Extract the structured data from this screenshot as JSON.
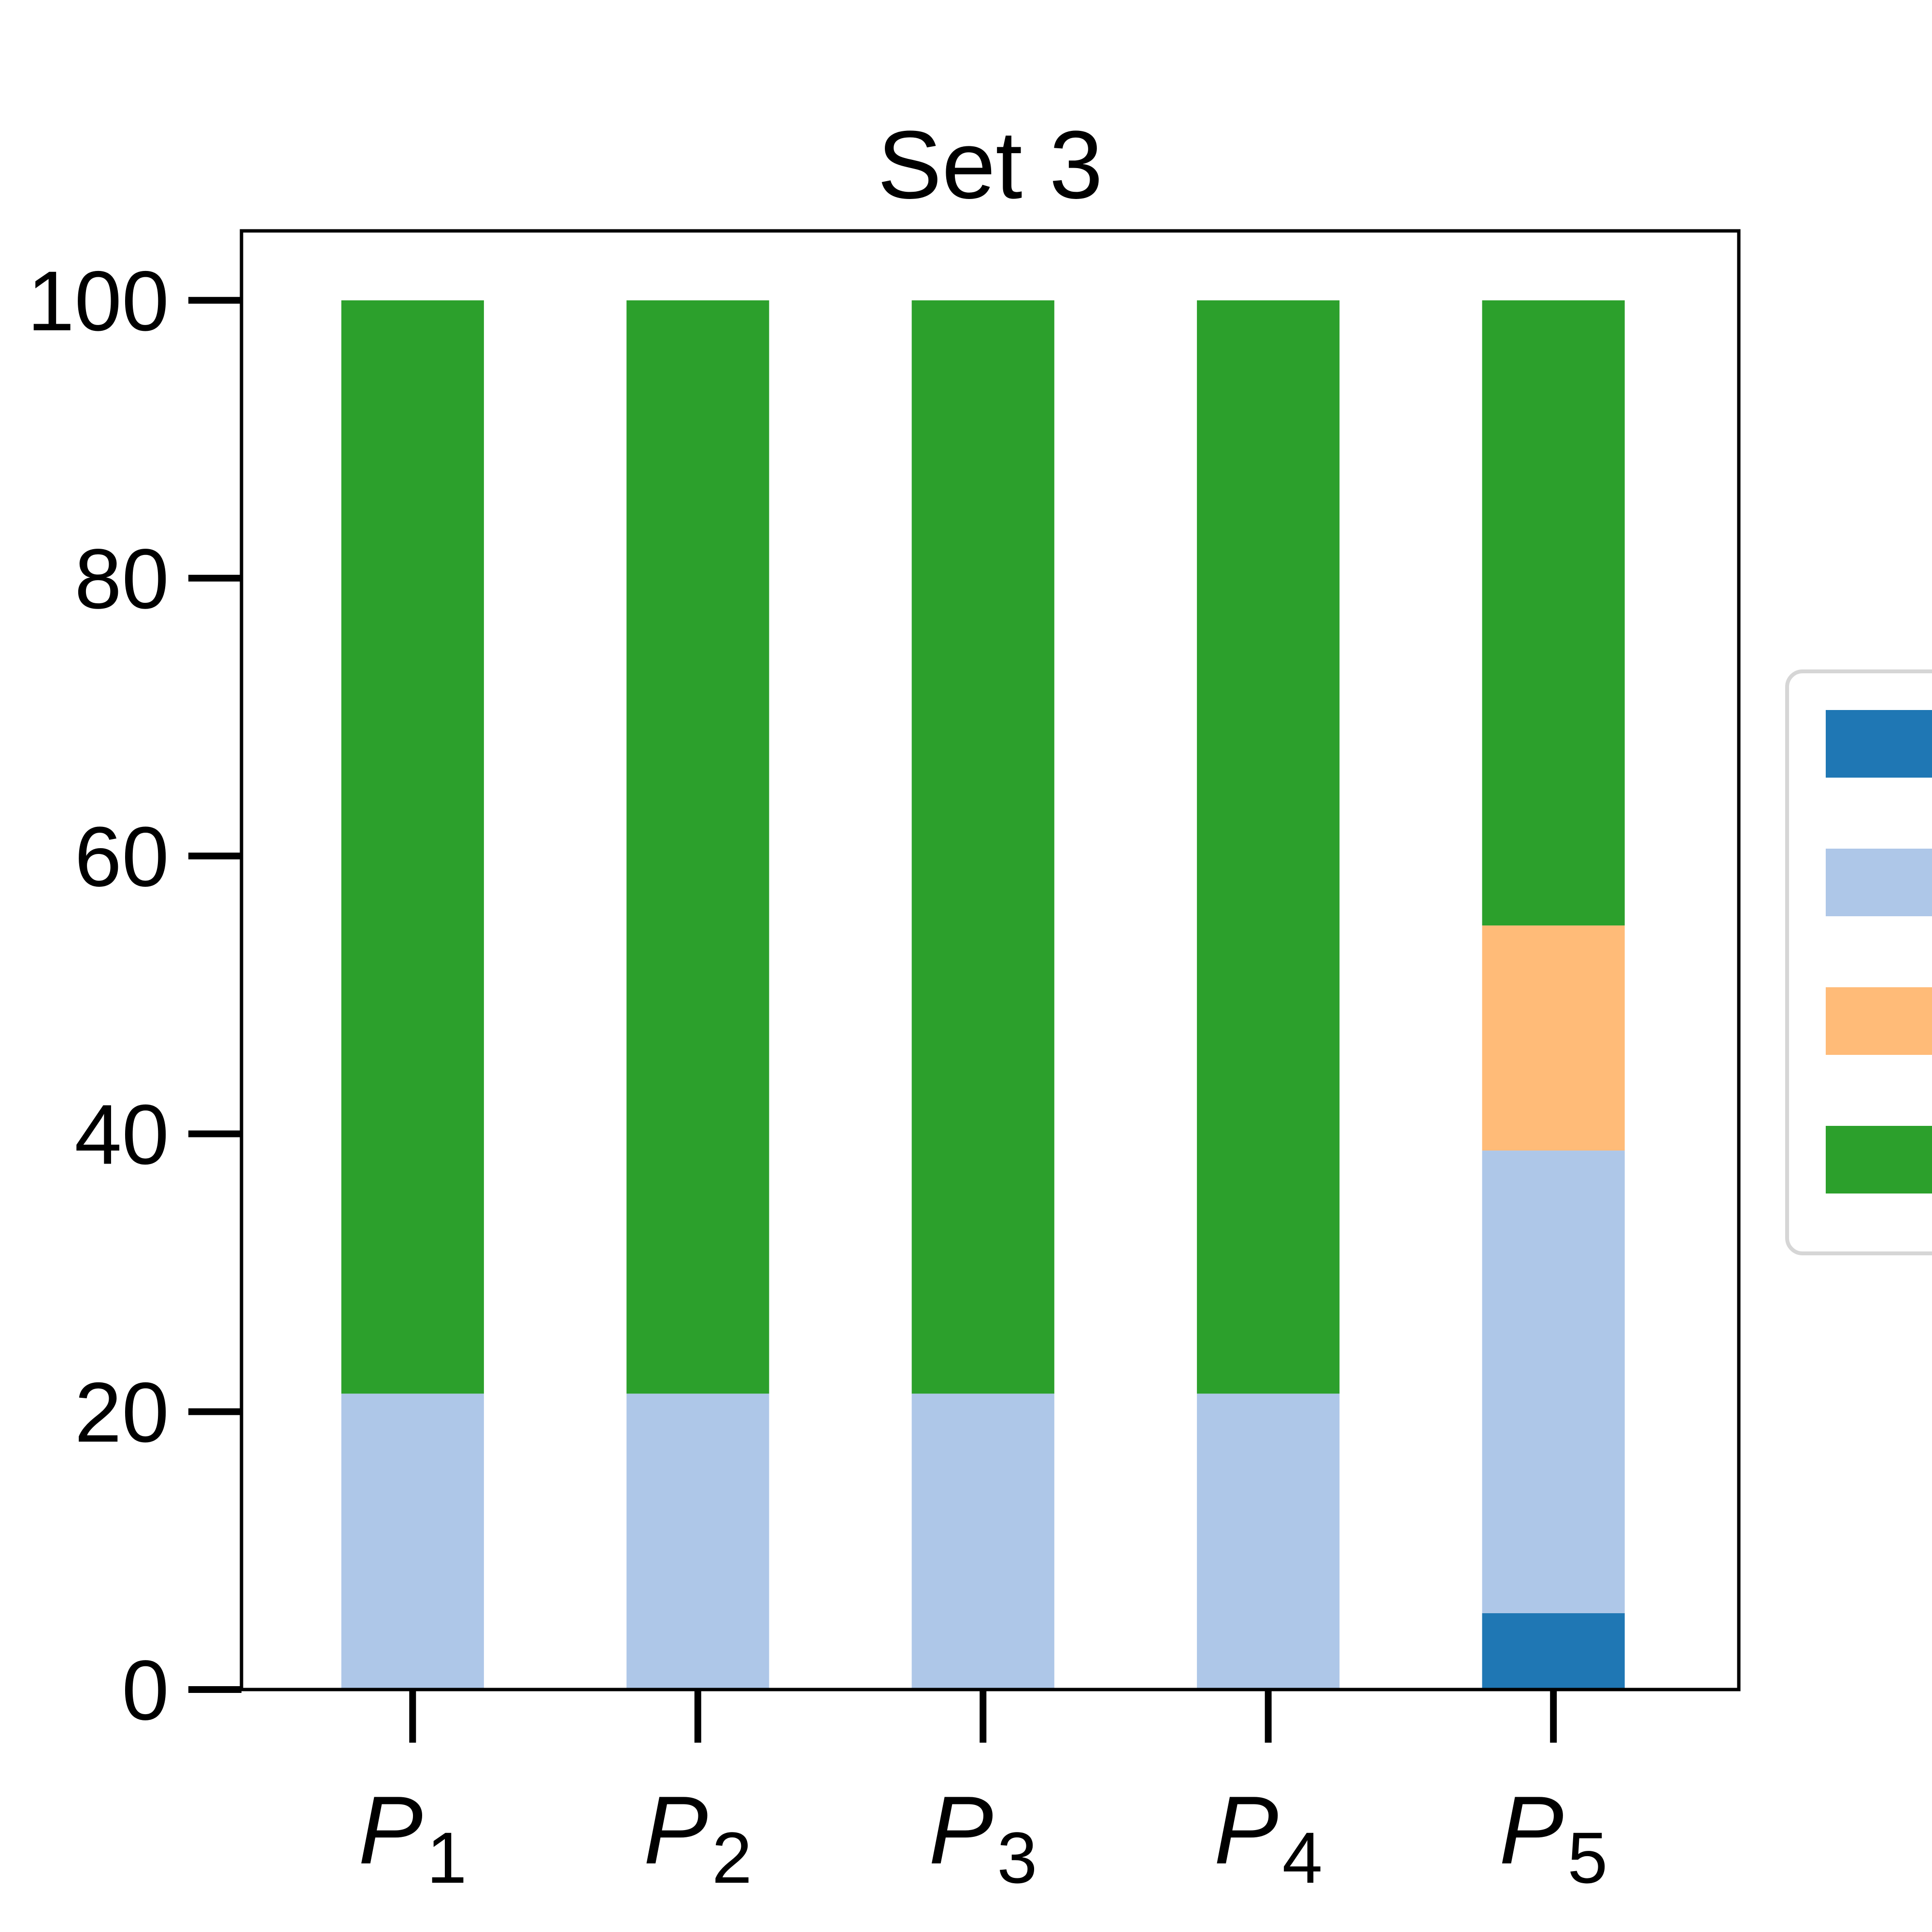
{
  "chart_data": {
    "type": "bar",
    "stacked": true,
    "title": "Set 3",
    "categories": [
      {
        "main": "P",
        "sub": "1"
      },
      {
        "main": "P",
        "sub": "2"
      },
      {
        "main": "P",
        "sub": "3"
      },
      {
        "main": "P",
        "sub": "4"
      },
      {
        "main": "P",
        "sub": "5"
      }
    ],
    "yticks": [
      "0",
      "20",
      "40",
      "60",
      "80",
      "100"
    ],
    "ylim": [
      0,
      105
    ],
    "grid": false,
    "legend_position": "right",
    "series": [
      {
        "color": "#1f77b4",
        "values": [
          0,
          0,
          0,
          0,
          5.5
        ]
      },
      {
        "color": "#aec7e8",
        "values": [
          21.3,
          21.3,
          21.3,
          21.3,
          33.3
        ]
      },
      {
        "color": "#ffbb78",
        "values": [
          0,
          0,
          0,
          0,
          16.2
        ]
      },
      {
        "color": "#2ca02c",
        "values": [
          78.7,
          78.7,
          78.7,
          78.7,
          45.0
        ]
      }
    ]
  }
}
